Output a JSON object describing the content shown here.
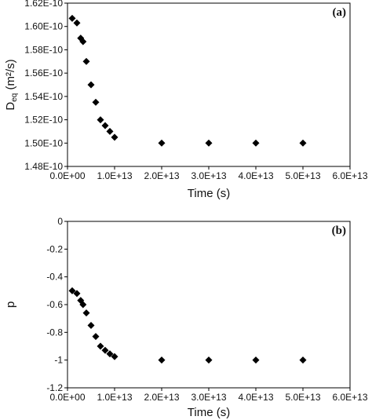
{
  "chart_data": [
    {
      "type": "scatter",
      "panel_label": "(a)",
      "xlabel": "Time (s)",
      "ylabel_main": "D",
      "ylabel_sub": "eq",
      "ylabel_units": " (m²/s)",
      "xlim": [
        0,
        60000000000000.0
      ],
      "ylim": [
        1.48e-10,
        1.62e-10
      ],
      "x_ticks": [
        0,
        10000000000000.0,
        20000000000000.0,
        30000000000000.0,
        40000000000000.0,
        50000000000000.0,
        60000000000000.0
      ],
      "x_tick_labels": [
        "0.0E+00",
        "1.0E+13",
        "2.0E+13",
        "3.0E+13",
        "4.0E+13",
        "5.0E+13",
        "6.0E+13"
      ],
      "y_ticks": [
        1.48e-10,
        1.5e-10,
        1.52e-10,
        1.54e-10,
        1.56e-10,
        1.58e-10,
        1.6e-10,
        1.62e-10
      ],
      "y_tick_labels": [
        "1.48E-10",
        "1.50E-10",
        "1.52E-10",
        "1.54E-10",
        "1.56E-10",
        "1.58E-10",
        "1.60E-10",
        "1.62E-10"
      ],
      "grid": false,
      "marker": "diamond",
      "marker_color": "#000000",
      "points": [
        {
          "x": 1000000000000.0,
          "y": 1.607e-10
        },
        {
          "x": 2000000000000.0,
          "y": 1.603e-10
        },
        {
          "x": 2800000000000.0,
          "y": 1.59e-10
        },
        {
          "x": 3300000000000.0,
          "y": 1.587e-10
        },
        {
          "x": 4000000000000.0,
          "y": 1.57e-10
        },
        {
          "x": 5000000000000.0,
          "y": 1.55e-10
        },
        {
          "x": 6000000000000.0,
          "y": 1.535e-10
        },
        {
          "x": 7000000000000.0,
          "y": 1.52e-10
        },
        {
          "x": 8000000000000.0,
          "y": 1.515e-10
        },
        {
          "x": 9000000000000.0,
          "y": 1.51e-10
        },
        {
          "x": 10000000000000.0,
          "y": 1.505e-10
        },
        {
          "x": 20000000000000.0,
          "y": 1.5e-10
        },
        {
          "x": 30000000000000.0,
          "y": 1.5e-10
        },
        {
          "x": 40000000000000.0,
          "y": 1.5e-10
        },
        {
          "x": 50000000000000.0,
          "y": 1.5e-10
        }
      ]
    },
    {
      "type": "scatter",
      "panel_label": "(b)",
      "xlabel": "Time (s)",
      "ylabel_main": "p",
      "xlim": [
        0,
        60000000000000.0
      ],
      "ylim": [
        -1.2,
        0
      ],
      "x_ticks": [
        0,
        10000000000000.0,
        20000000000000.0,
        30000000000000.0,
        40000000000000.0,
        50000000000000.0,
        60000000000000.0
      ],
      "x_tick_labels": [
        "0.0E+00",
        "1.0E+13",
        "2.0E+13",
        "3.0E+13",
        "4.0E+13",
        "5.0E+13",
        "6.0E+13"
      ],
      "y_ticks": [
        -1.2,
        -1,
        -0.8,
        -0.6,
        -0.4,
        -0.2,
        0
      ],
      "y_tick_labels": [
        "-1.2",
        "-1",
        "-0.8",
        "-0.6",
        "-0.4",
        "-0.2",
        "0"
      ],
      "grid": false,
      "marker": "diamond",
      "marker_color": "#000000",
      "points": [
        {
          "x": 1000000000000.0,
          "y": -0.5
        },
        {
          "x": 2000000000000.0,
          "y": -0.52
        },
        {
          "x": 2800000000000.0,
          "y": -0.57
        },
        {
          "x": 3300000000000.0,
          "y": -0.6
        },
        {
          "x": 4000000000000.0,
          "y": -0.66
        },
        {
          "x": 5000000000000.0,
          "y": -0.75
        },
        {
          "x": 6000000000000.0,
          "y": -0.83
        },
        {
          "x": 7000000000000.0,
          "y": -0.9
        },
        {
          "x": 8000000000000.0,
          "y": -0.93
        },
        {
          "x": 9000000000000.0,
          "y": -0.955
        },
        {
          "x": 10000000000000.0,
          "y": -0.975
        },
        {
          "x": 20000000000000.0,
          "y": -1.0
        },
        {
          "x": 30000000000000.0,
          "y": -1.0
        },
        {
          "x": 40000000000000.0,
          "y": -1.0
        },
        {
          "x": 50000000000000.0,
          "y": -1.0
        }
      ]
    }
  ]
}
